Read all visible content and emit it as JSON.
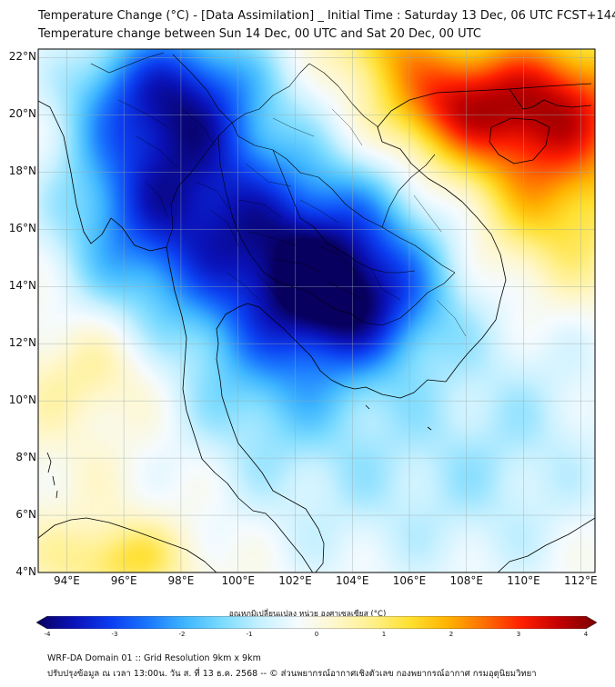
{
  "header": {
    "title_line1": "Temperature Change (°C) - [Data Assimilation] _ Initial Time : Saturday 13 Dec, 06 UTC FCST+144",
    "title_line2": "Temperature change between Sun 14 Dec, 00 UTC and Sat 20 Dec, 00 UTC"
  },
  "map": {
    "lat_labels": [
      "22°N",
      "20°N",
      "18°N",
      "16°N",
      "14°N",
      "12°N",
      "10°N",
      "8°N",
      "6°N",
      "4°N"
    ],
    "lon_labels": [
      "94°E",
      "96°E",
      "98°E",
      "100°E",
      "102°E",
      "104°E",
      "106°E",
      "108°E",
      "110°E",
      "112°E"
    ],
    "lat_range": [
      4,
      22.3
    ],
    "lon_range": [
      93.0,
      112.5
    ],
    "field": {
      "base_value": 0.1,
      "features": [
        {
          "name": "cold-core-indochina",
          "lon": 102.5,
          "lat": 15.0,
          "amp": -3.6,
          "sx": 3.0,
          "sy": 2.4
        },
        {
          "name": "cold-myanmar",
          "lon": 98.0,
          "lat": 18.5,
          "amp": -2.4,
          "sx": 2.3,
          "sy": 2.8
        },
        {
          "name": "cold-north-myanmar",
          "lon": 97.5,
          "lat": 21.0,
          "amp": -1.8,
          "sx": 2.5,
          "sy": 1.6
        },
        {
          "name": "cold-cambodia",
          "lon": 104.0,
          "lat": 13.2,
          "amp": -1.6,
          "sx": 2.0,
          "sy": 1.5
        },
        {
          "name": "cold-andaman",
          "lon": 96.0,
          "lat": 16.0,
          "amp": -1.2,
          "sx": 2.2,
          "sy": 2.5
        },
        {
          "name": "cold-gulf",
          "lon": 101.0,
          "lat": 10.5,
          "amp": -1.0,
          "sx": 2.5,
          "sy": 2.0
        },
        {
          "name": "cold-south-seas",
          "lon": 104.0,
          "lat": 7.0,
          "amp": -0.8,
          "sx": 4.0,
          "sy": 3.0
        },
        {
          "name": "cold-east-sea",
          "lon": 110.0,
          "lat": 9.0,
          "amp": -0.8,
          "sx": 3.0,
          "sy": 4.0
        },
        {
          "name": "warm-south-china",
          "lon": 110.5,
          "lat": 20.2,
          "amp": 3.3,
          "sx": 2.6,
          "sy": 1.8
        },
        {
          "name": "warm-gulf-tonkin",
          "lon": 107.0,
          "lat": 20.5,
          "amp": 1.6,
          "sx": 1.5,
          "sy": 1.3
        },
        {
          "name": "warm-east-sea-north",
          "lon": 111.0,
          "lat": 16.5,
          "amp": 1.3,
          "sx": 2.0,
          "sy": 2.0
        },
        {
          "name": "warm-northeast-corner",
          "lon": 105.0,
          "lat": 22.5,
          "amp": 1.2,
          "sx": 1.2,
          "sy": 1.0
        },
        {
          "name": "warm-sumatra",
          "lon": 96.0,
          "lat": 4.5,
          "amp": 1.2,
          "sx": 1.6,
          "sy": 0.9
        },
        {
          "name": "warm-andaman-south",
          "lon": 95.0,
          "lat": 11.0,
          "amp": 0.7,
          "sx": 1.5,
          "sy": 1.3
        }
      ]
    }
  },
  "colorbar": {
    "title": "อุณหภูมิเปลี่ยนแปลง หน่วย องศาเซลเซียส (°C)",
    "range": [
      -4,
      4
    ],
    "ticks": [
      "-4",
      "-3",
      "-2",
      "-1",
      "0",
      "1",
      "2",
      "3",
      "4"
    ],
    "colors": [
      "#08005e",
      "#0a12b8",
      "#0b3df0",
      "#1a78ff",
      "#3fb7ff",
      "#7ddcff",
      "#c8f1ff",
      "#f5fbff",
      "#fff7cc",
      "#fff08a",
      "#ffe030",
      "#ffb300",
      "#ff6e00",
      "#ff1e00",
      "#c20000",
      "#7a0000"
    ]
  },
  "footer": {
    "line1": "WRF-DA Domain 01 :: Grid Resolution 9km x 9km",
    "line2": "ปรับปรุงข้อมูล ณ เวลา 13:00น. วัน ส. ที่ 13 ธ.ค. 2568 -- © ส่วนพยากรณ์อากาศเชิงตัวเลข กองพยากรณ์อากาศ กรมอุตุนิยมวิทยา"
  }
}
